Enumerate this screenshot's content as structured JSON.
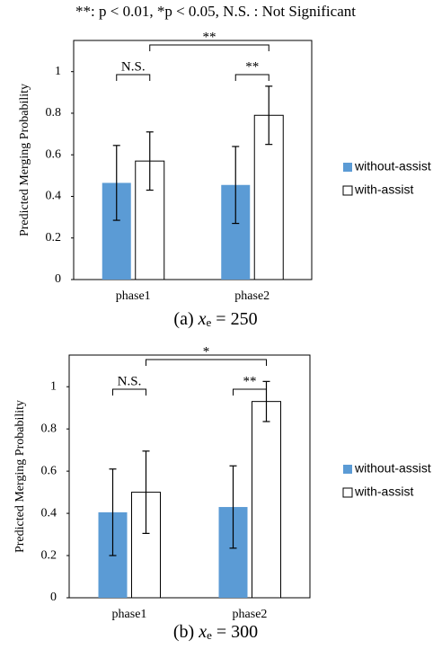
{
  "note": "**: p < 0.01, *p < 0.05, N.S. : Not Significant",
  "chart_data": [
    {
      "type": "bar",
      "caption": {
        "label": "(a)",
        "variable": "x",
        "subscript": "e",
        "value": "= 250"
      },
      "y_label": "Predicted Merging Probability",
      "categories": [
        "phase1",
        "phase2"
      ],
      "series": [
        {
          "name": "without-assist",
          "color": "#5b9bd5",
          "values": [
            0.465,
            0.455
          ],
          "errors": [
            0.18,
            0.185
          ]
        },
        {
          "name": "with-assist",
          "color": "#ffffff",
          "values": [
            0.57,
            0.79
          ],
          "errors": [
            0.14,
            0.14
          ]
        }
      ],
      "annotations": [
        "N.S.",
        "**",
        "**"
      ],
      "ylim": [
        0,
        1.15
      ],
      "yticks": [
        0,
        0.2,
        0.4,
        0.6,
        0.8,
        1
      ]
    },
    {
      "type": "bar",
      "caption": {
        "label": "(b)",
        "variable": "x",
        "subscript": "e",
        "value": "= 300"
      },
      "y_label": "Predicted Merging Probability",
      "categories": [
        "phase1",
        "phase2"
      ],
      "series": [
        {
          "name": "without-assist",
          "color": "#5b9bd5",
          "values": [
            0.405,
            0.43
          ],
          "errors": [
            0.205,
            0.195
          ]
        },
        {
          "name": "with-assist",
          "color": "#ffffff",
          "values": [
            0.5,
            0.93
          ],
          "errors": [
            0.195,
            0.095
          ]
        }
      ],
      "annotations": [
        "N.S.",
        "*",
        "**"
      ],
      "ylim": [
        0,
        1.15
      ],
      "yticks": [
        0,
        0.2,
        0.4,
        0.6,
        0.8,
        1
      ]
    }
  ]
}
